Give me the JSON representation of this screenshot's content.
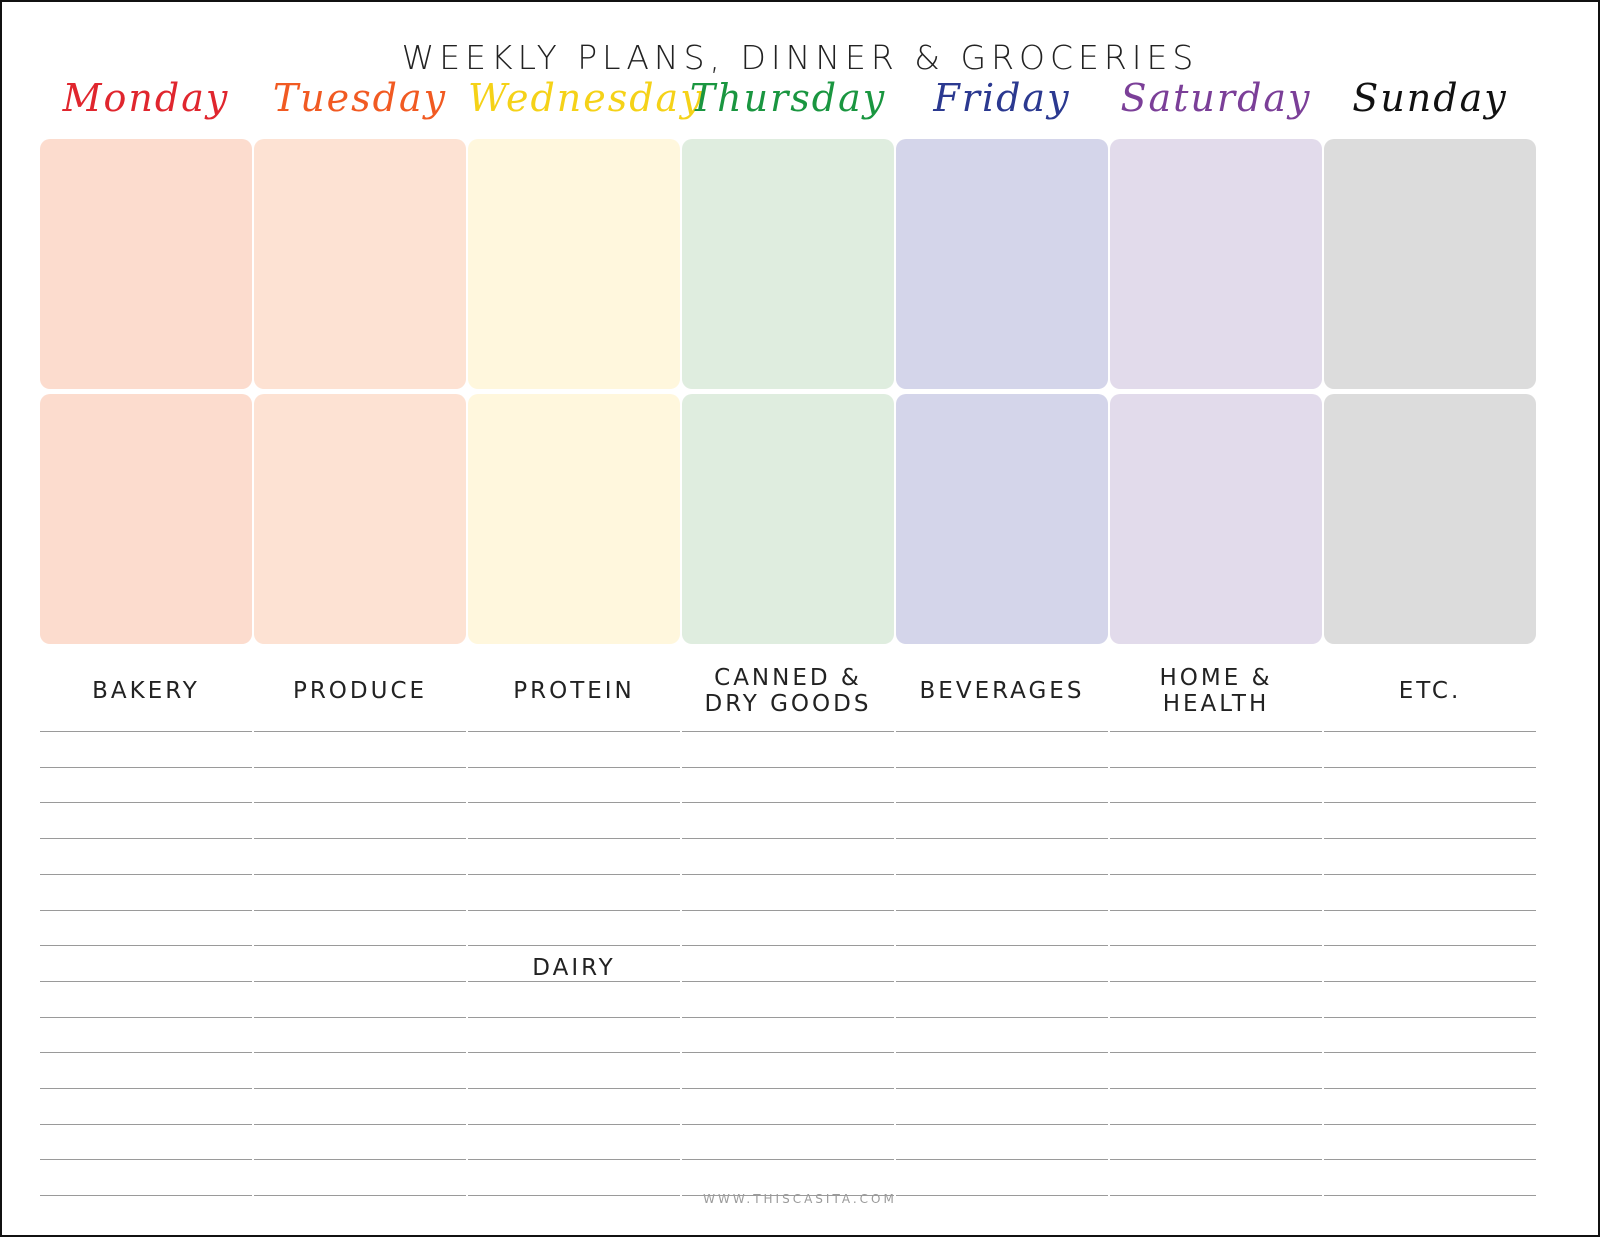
{
  "title": "WEEKLY PLANS, DINNER & GROCERIES",
  "days": [
    {
      "label": "Monday",
      "color": "#e0262e",
      "fill": "#fcdcce"
    },
    {
      "label": "Tuesday",
      "color": "#f15a22",
      "fill": "#fde2d3"
    },
    {
      "label": "Wednesday",
      "color": "#f5d218",
      "fill": "#fff7dd"
    },
    {
      "label": "Thursday",
      "color": "#1a9640",
      "fill": "#dfeddf"
    },
    {
      "label": "Friday",
      "color": "#2b3990",
      "fill": "#d4d5ea"
    },
    {
      "label": "Saturday",
      "color": "#7b3f98",
      "fill": "#e2dbeb"
    },
    {
      "label": "Sunday",
      "color": "#111111",
      "fill": "#dcdcdc"
    }
  ],
  "categories": [
    "BAKERY",
    "PRODUCE",
    "PROTEIN",
    "CANNED &\nDRY GOODS",
    "BEVERAGES",
    "HOME &\nHEALTH",
    "ETC."
  ],
  "subcategory": {
    "label": "DAIRY",
    "column": 2
  },
  "footer": "WWW.THISCASITA.COM"
}
